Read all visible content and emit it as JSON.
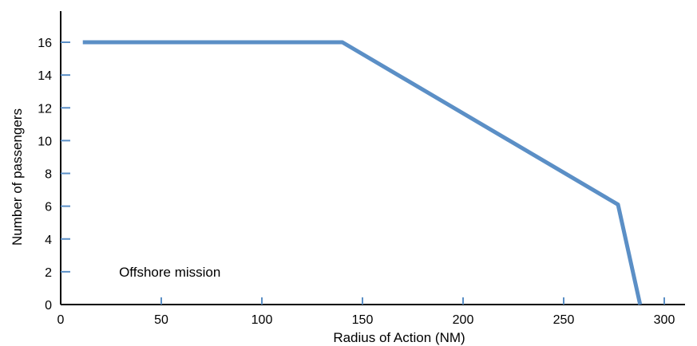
{
  "chart_data": {
    "type": "line",
    "title": "",
    "xlabel": "Radius of Action (NM)",
    "ylabel": "Number of passengers",
    "xlim": [
      0,
      315
    ],
    "ylim": [
      0,
      18
    ],
    "x_ticks": [
      0,
      50,
      100,
      150,
      200,
      250,
      300
    ],
    "y_ticks": [
      0,
      2,
      4,
      6,
      8,
      10,
      12,
      14,
      16
    ],
    "x_tick_labels": [
      "0",
      "50",
      "100",
      "150",
      "200",
      "250",
      "300"
    ],
    "y_tick_labels": [
      "0",
      "2",
      "4",
      "6",
      "8",
      "10",
      "12",
      "14",
      "16"
    ],
    "grid": false,
    "legend": "none",
    "annotations": [
      {
        "text": "Offshore mission",
        "x": 29,
        "y": 2
      }
    ],
    "series": [
      {
        "color": "#5b8fc6",
        "x": [
          11,
          140,
          277,
          288
        ],
        "y": [
          16,
          16,
          6.1,
          0
        ]
      }
    ],
    "colors": {
      "line": "#5b8fc6",
      "tick": "#5b8fc6",
      "axis": "#000000"
    }
  }
}
